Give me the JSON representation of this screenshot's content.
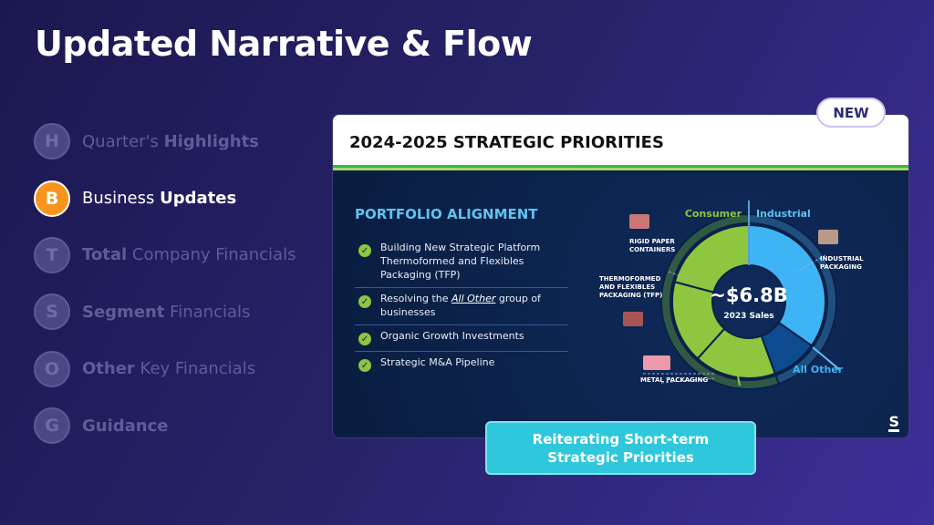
{
  "title": "Updated Narrative & Flow",
  "nav": [
    {
      "letter": "H",
      "pre": "Quarter's ",
      "bold": "Highlights",
      "post": "",
      "active": false
    },
    {
      "letter": "B",
      "pre": "Business ",
      "bold": "Updates",
      "post": "",
      "active": true
    },
    {
      "letter": "T",
      "pre": "",
      "bold": "Total",
      "post": " Company Financials",
      "active": false
    },
    {
      "letter": "S",
      "pre": "",
      "bold": "Segment",
      "post": " Financials",
      "active": false
    },
    {
      "letter": "O",
      "pre": "",
      "bold": "Other",
      "post": " Key Financials",
      "active": false
    },
    {
      "letter": "G",
      "pre": "",
      "bold": "Guidance",
      "post": "",
      "active": false
    }
  ],
  "badge": "NEW",
  "card": {
    "title": "2024-2025 STRATEGIC PRIORITIES",
    "section": "PORTFOLIO ALIGNMENT",
    "items": [
      {
        "pre": "Building New Strategic Platform Thermoformed and Flexibles Packaging (TFP)",
        "em": "",
        "post": ""
      },
      {
        "pre": "Resolving the ",
        "em": "All Other",
        "post": " group of businesses"
      },
      {
        "pre": "Organic Growth Investments",
        "em": "",
        "post": ""
      },
      {
        "pre": "Strategic M&A Pipeline",
        "em": "",
        "post": ""
      }
    ],
    "donut": {
      "center_value": "~$6.8B",
      "center_label": "2023 Sales",
      "consumer_label": "Consumer",
      "industrial_label": "Industrial",
      "all_other_label": "All Other",
      "segments": [
        "Rigid Paper Containers",
        "Thermoformed and Flexibles Packaging (TFP)",
        "Metal Packaging",
        "Industrial Packaging",
        "All Other"
      ],
      "labels": {
        "rigid": [
          "RIGID PAPER",
          "CONTAINERS"
        ],
        "tfp": [
          "THERMOFORMED",
          "AND FLEXIBLES",
          "PACKAGING (TFP)"
        ],
        "metal": "METAL PACKAGING",
        "industrial": [
          "INDUSTRIAL",
          "PACKAGING"
        ]
      },
      "colors": {
        "consumer": "#8dc63f",
        "industrial": "#3fb4f5",
        "all_other": "#0d4a8f",
        "ring_consumer": "#2e5a45",
        "ring_industrial": "#1f4f7f"
      }
    },
    "logo": "S"
  },
  "callout": [
    "Reiterating Short-term",
    "Strategic Priorities"
  ]
}
